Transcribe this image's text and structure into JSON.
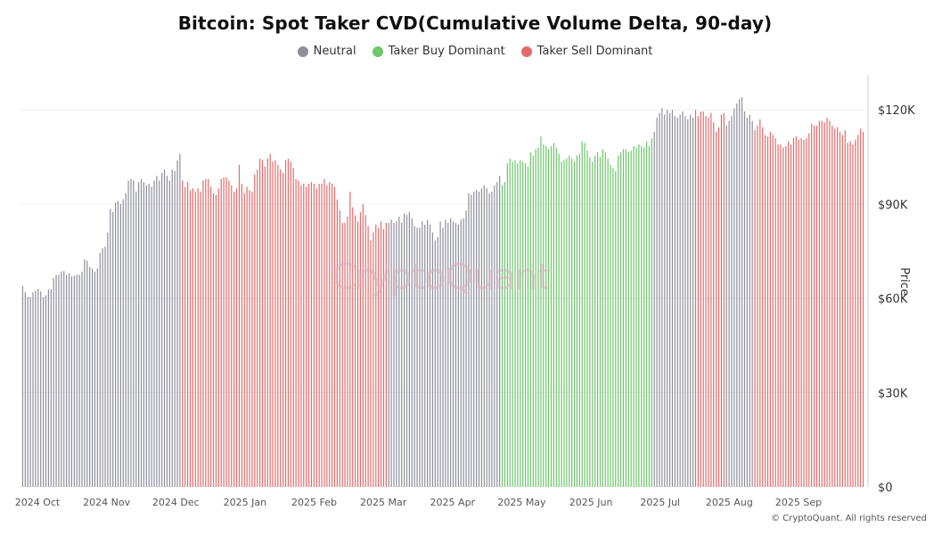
{
  "title": "Bitcoin: Spot Taker CVD(Cumulative Volume Delta, 90-day)",
  "legend": [
    {
      "label": "Neutral",
      "color": "#8e8e9c"
    },
    {
      "label": "Taker Buy Dominant",
      "color": "#6cc66a"
    },
    {
      "label": "Taker Sell Dominant",
      "color": "#e46a6a"
    }
  ],
  "watermark": "CryptoQuant",
  "y_axis_title": "Price",
  "copyright": "© CryptoQuant. All rights reserved",
  "chart_data": {
    "type": "bar",
    "ylabel": "Price",
    "ylim": [
      0,
      130000
    ],
    "yticks": [
      0,
      30000,
      60000,
      90000,
      120000
    ],
    "ytick_labels": [
      "$0",
      "$30K",
      "$60K",
      "$90K",
      "$120K"
    ],
    "xtick_labels": [
      "2024 Oct",
      "2024 Nov",
      "2024 Dec",
      "2025 Jan",
      "2025 Feb",
      "2025 Mar",
      "2025 Apr",
      "2025 May",
      "2025 Jun",
      "2025 Jul",
      "2025 Aug",
      "2025 Sep"
    ],
    "grid": true,
    "legend_position": "top-center",
    "segments": [
      {
        "category": "Neutral",
        "from": "2024-10-01",
        "to": "2024-12-19",
        "values": [
          64000,
          62000,
          60500,
          60500,
          62000,
          62500,
          63000,
          62200,
          60500,
          61000,
          62800,
          63000,
          66500,
          67500,
          67500,
          68500,
          68700,
          67500,
          68000,
          67000,
          67200,
          67600,
          67500,
          68500,
          72500,
          72000,
          70000,
          69500,
          68500,
          69500,
          74500,
          76000,
          76500,
          81000,
          88500,
          87500,
          90500,
          91000,
          90000,
          91500,
          93500,
          97500,
          98000,
          97500,
          94000,
          97000,
          98000,
          97000,
          96000,
          96500,
          95500,
          97500,
          99000,
          97500,
          100000,
          101000,
          99000,
          97500,
          101000,
          100500,
          104000,
          106000
        ]
      },
      {
        "category": "Taker Sell Dominant",
        "from": "2024-12-20",
        "to": "2025-03-14",
        "values": [
          97500,
          95500,
          97000,
          94500,
          95000,
          94000,
          95000,
          94000,
          97500,
          98000,
          98000,
          95500,
          93500,
          93000,
          95000,
          98000,
          98500,
          98500,
          97500,
          96000,
          94000,
          95000,
          102500,
          96500,
          93500,
          95500,
          94500,
          94000,
          99500,
          101000,
          104500,
          104000,
          102000,
          104500,
          106000,
          103500,
          104000,
          102500,
          101000,
          100000,
          104000,
          104500,
          103500,
          101500,
          98000,
          97500,
          96000,
          96500,
          95500,
          96500,
          97000,
          96500,
          95000,
          96500,
          96500,
          98000,
          96000,
          97000,
          96500,
          95500,
          91500,
          88000,
          84000,
          84000,
          86000,
          94000,
          89000,
          86500,
          84500,
          87500,
          90000,
          86500,
          83000,
          78500,
          81000,
          83500,
          82500,
          84500,
          82000,
          84000
        ]
      },
      {
        "category": "Neutral",
        "from": "2025-03-15",
        "to": "2025-04-25",
        "values": [
          84000,
          85000,
          84000,
          84500,
          86000,
          84000,
          87000,
          86500,
          87500,
          85500,
          83000,
          82500,
          82500,
          84500,
          83500,
          85000,
          83500,
          81000,
          78500,
          79500,
          84500,
          82500,
          85000,
          84000,
          85500,
          84500,
          84000,
          83500,
          85000,
          85500,
          88000
        ]
      },
      {
        "category": "Neutral",
        "from": "2025-04-26",
        "to": "2025-05-08",
        "values": [
          93500,
          93000,
          94000,
          94500,
          94000,
          95000,
          96000,
          95000,
          93500,
          94000,
          96000,
          97000,
          99000
        ]
      },
      {
        "category": "Taker Buy Dominant",
        "from": "2025-05-09",
        "to": "2025-07-10",
        "values": [
          96000,
          97000,
          103000,
          104500,
          103500,
          104000,
          103000,
          104000,
          103500,
          103000,
          102000,
          106500,
          105500,
          107500,
          108000,
          111500,
          109000,
          108500,
          107500,
          108500,
          109500,
          108000,
          106000,
          103500,
          104000,
          104500,
          105500,
          104500,
          103500,
          105500,
          106000,
          110000,
          109500,
          107000,
          105000,
          103500,
          105500,
          106500,
          105000,
          107500,
          106500,
          104500,
          102500,
          101500,
          100500,
          105500,
          106500,
          107500,
          107500,
          106500,
          107000,
          108500,
          108000,
          109000,
          108500,
          108000,
          110000,
          108500,
          111000
        ]
      },
      {
        "category": "Neutral",
        "from": "2025-07-11",
        "to": "2025-07-26",
        "values": [
          113000,
          117500,
          119000,
          120500,
          118500,
          120000,
          119000,
          120000,
          118000,
          117500,
          118500,
          119500,
          118000,
          117000,
          118500,
          117500
        ]
      },
      {
        "category": "Taker Sell Dominant",
        "from": "2025-07-27",
        "to": "2025-08-07",
        "values": [
          120000,
          118000,
          119500,
          119500,
          118000,
          117500,
          119000,
          116000,
          113000,
          114500,
          118500,
          119000
        ]
      },
      {
        "category": "Neutral",
        "from": "2025-08-08",
        "to": "2025-08-18",
        "values": [
          115000,
          116500,
          118000,
          120500,
          122000,
          123500,
          124000,
          119500,
          117500,
          118500,
          116500
        ]
      },
      {
        "category": "Taker Sell Dominant",
        "from": "2025-08-19",
        "to": "2025-09-30",
        "values": [
          113500,
          115000,
          117000,
          114500,
          112000,
          111500,
          113000,
          112000,
          111000,
          109000,
          109000,
          108000,
          108500,
          110000,
          109000,
          111000,
          111500,
          110500,
          111000,
          110500,
          111000,
          112500,
          115500,
          115000,
          115000,
          116500,
          116500,
          116000,
          117500,
          116500,
          115000,
          114000,
          114500,
          113000,
          112000,
          113500,
          109500,
          110000,
          109000,
          110500,
          112000,
          114000,
          113000
        ]
      }
    ]
  }
}
